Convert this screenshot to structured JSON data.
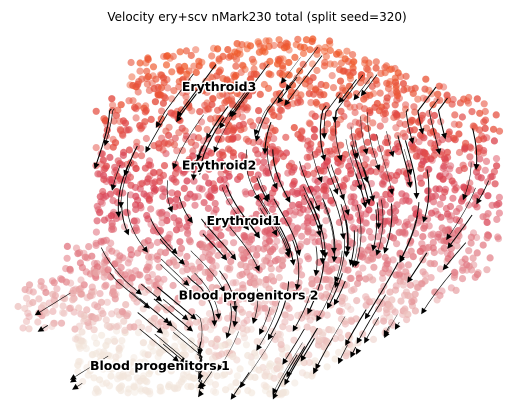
{
  "chart_data": {
    "type": "scatter",
    "title": "Velocity ery+scv nMark230 total (split seed=320)",
    "xlabel": "",
    "ylabel": "",
    "grid": false,
    "legend": "none",
    "axes_visible": false,
    "color_scale": {
      "low": "#f2e6dc",
      "mid": "#d94356",
      "high": "#f05a2a",
      "meaning": "pseudotime, low=progenitors, high=Erythroid3"
    },
    "clusters": [
      {
        "name": "Erythroid3",
        "x": 0.42,
        "y": 0.83,
        "value": 0.95
      },
      {
        "name": "Erythroid2",
        "x": 0.42,
        "y": 0.62,
        "value": 0.7
      },
      {
        "name": "Erythroid1",
        "x": 0.47,
        "y": 0.47,
        "value": 0.55
      },
      {
        "name": "Blood progenitors 2",
        "x": 0.48,
        "y": 0.27,
        "value": 0.22
      },
      {
        "name": "Blood progenitors 1",
        "x": 0.3,
        "y": 0.08,
        "value": 0.05
      }
    ],
    "streamlines": "velocity stream arrows overlaid in black"
  }
}
